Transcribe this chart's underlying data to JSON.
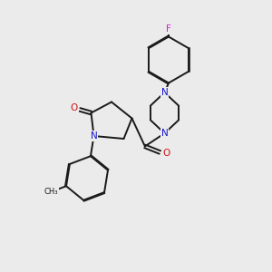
{
  "background_color": "#ebebeb",
  "bond_color": "#1a1a1a",
  "N_color": "#1515cc",
  "O_color": "#cc1515",
  "F_color": "#cc22cc",
  "line_width": 1.4,
  "dbo": 0.055,
  "figsize": [
    3.0,
    3.0
  ],
  "dpi": 100,
  "xlim": [
    0,
    10
  ],
  "ylim": [
    0,
    10
  ]
}
